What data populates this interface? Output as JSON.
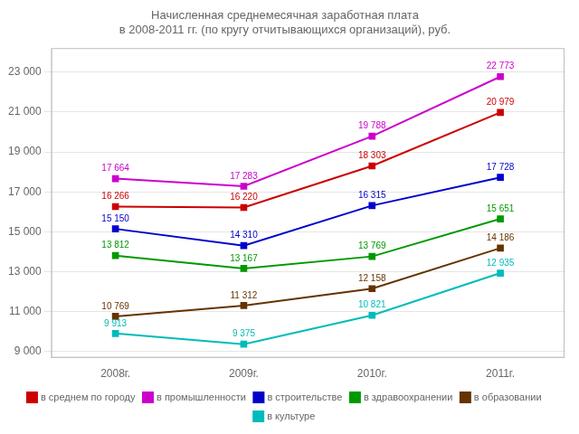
{
  "chart_data": {
    "type": "line",
    "title": "Начисленная среднемесячная заработная плата\nв 2008-2011 гг. (по кругу отчитывающихся организаций), руб.",
    "categories": [
      "2008г.",
      "2009г.",
      "2010г.",
      "2011г."
    ],
    "series": [
      {
        "name": "в среднем по городу",
        "color": "#cc0000",
        "marker": "square",
        "values": [
          16266,
          16220,
          18303,
          20979
        ],
        "value_labels": [
          "16 266",
          "16 220",
          "18 303",
          "20 979"
        ]
      },
      {
        "name": "в промышленности",
        "color": "#cc00cc",
        "marker": "square",
        "values": [
          17664,
          17283,
          19788,
          22773
        ],
        "value_labels": [
          "17 664",
          "17 283",
          "19 788",
          "22 773"
        ]
      },
      {
        "name": "в строительстве",
        "color": "#0000cc",
        "marker": "square",
        "values": [
          15150,
          14310,
          16315,
          17728
        ],
        "value_labels": [
          "15 150",
          "14 310",
          "16 315",
          "17 728"
        ]
      },
      {
        "name": "в здравоохранении",
        "color": "#009900",
        "marker": "square",
        "values": [
          13812,
          13167,
          13769,
          15651
        ],
        "value_labels": [
          "13 812",
          "13 167",
          "13 769",
          "15 651"
        ]
      },
      {
        "name": "в образовании",
        "color": "#663300",
        "marker": "square",
        "values": [
          10769,
          11312,
          12158,
          14186
        ],
        "value_labels": [
          "10 769",
          "11 312",
          "12 158",
          "14 186"
        ]
      },
      {
        "name": "в культуре",
        "color": "#00bbbb",
        "marker": "square",
        "values": [
          9913,
          9375,
          10821,
          12935
        ],
        "value_labels": [
          "9 913",
          "9 375",
          "10 821",
          "12 935"
        ]
      }
    ],
    "ylim": [
      8700,
      24200
    ],
    "yticks": [
      {
        "value": 9000,
        "label": "9 000"
      },
      {
        "value": 11000,
        "label": "11 000"
      },
      {
        "value": 13000,
        "label": "13 000"
      },
      {
        "value": 15000,
        "label": "15 000"
      },
      {
        "value": 17000,
        "label": "17 000"
      },
      {
        "value": 19000,
        "label": "19 000"
      },
      {
        "value": 21000,
        "label": "21 000"
      },
      {
        "value": 23000,
        "label": "23 000"
      }
    ],
    "grid": true,
    "legend": "bottom",
    "data_labels": true
  }
}
